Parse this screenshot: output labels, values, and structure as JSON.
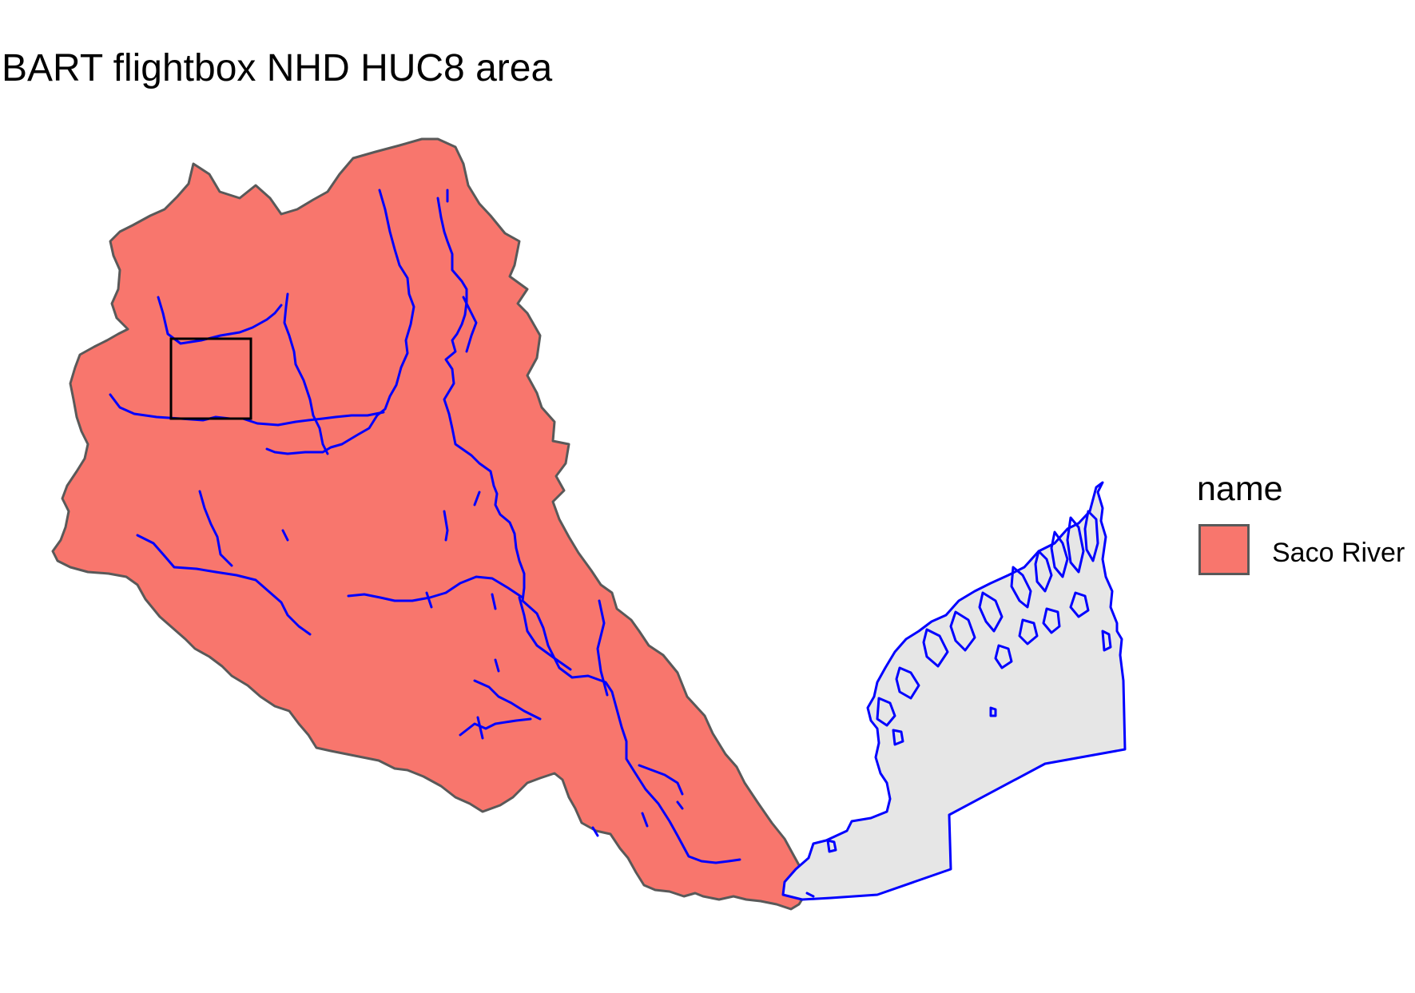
{
  "title": "BART flightbox NHD HUC8 area",
  "legend": {
    "title": "name",
    "items": [
      {
        "label": "Saco River",
        "fill": "#F8766D"
      }
    ]
  },
  "colors": {
    "huc8_fill": "#F8766D",
    "huc8_border": "#595959",
    "flowlines": "#0000FF",
    "ocean_fill": "#E6E6E6",
    "flightbox_border": "#000000"
  }
}
